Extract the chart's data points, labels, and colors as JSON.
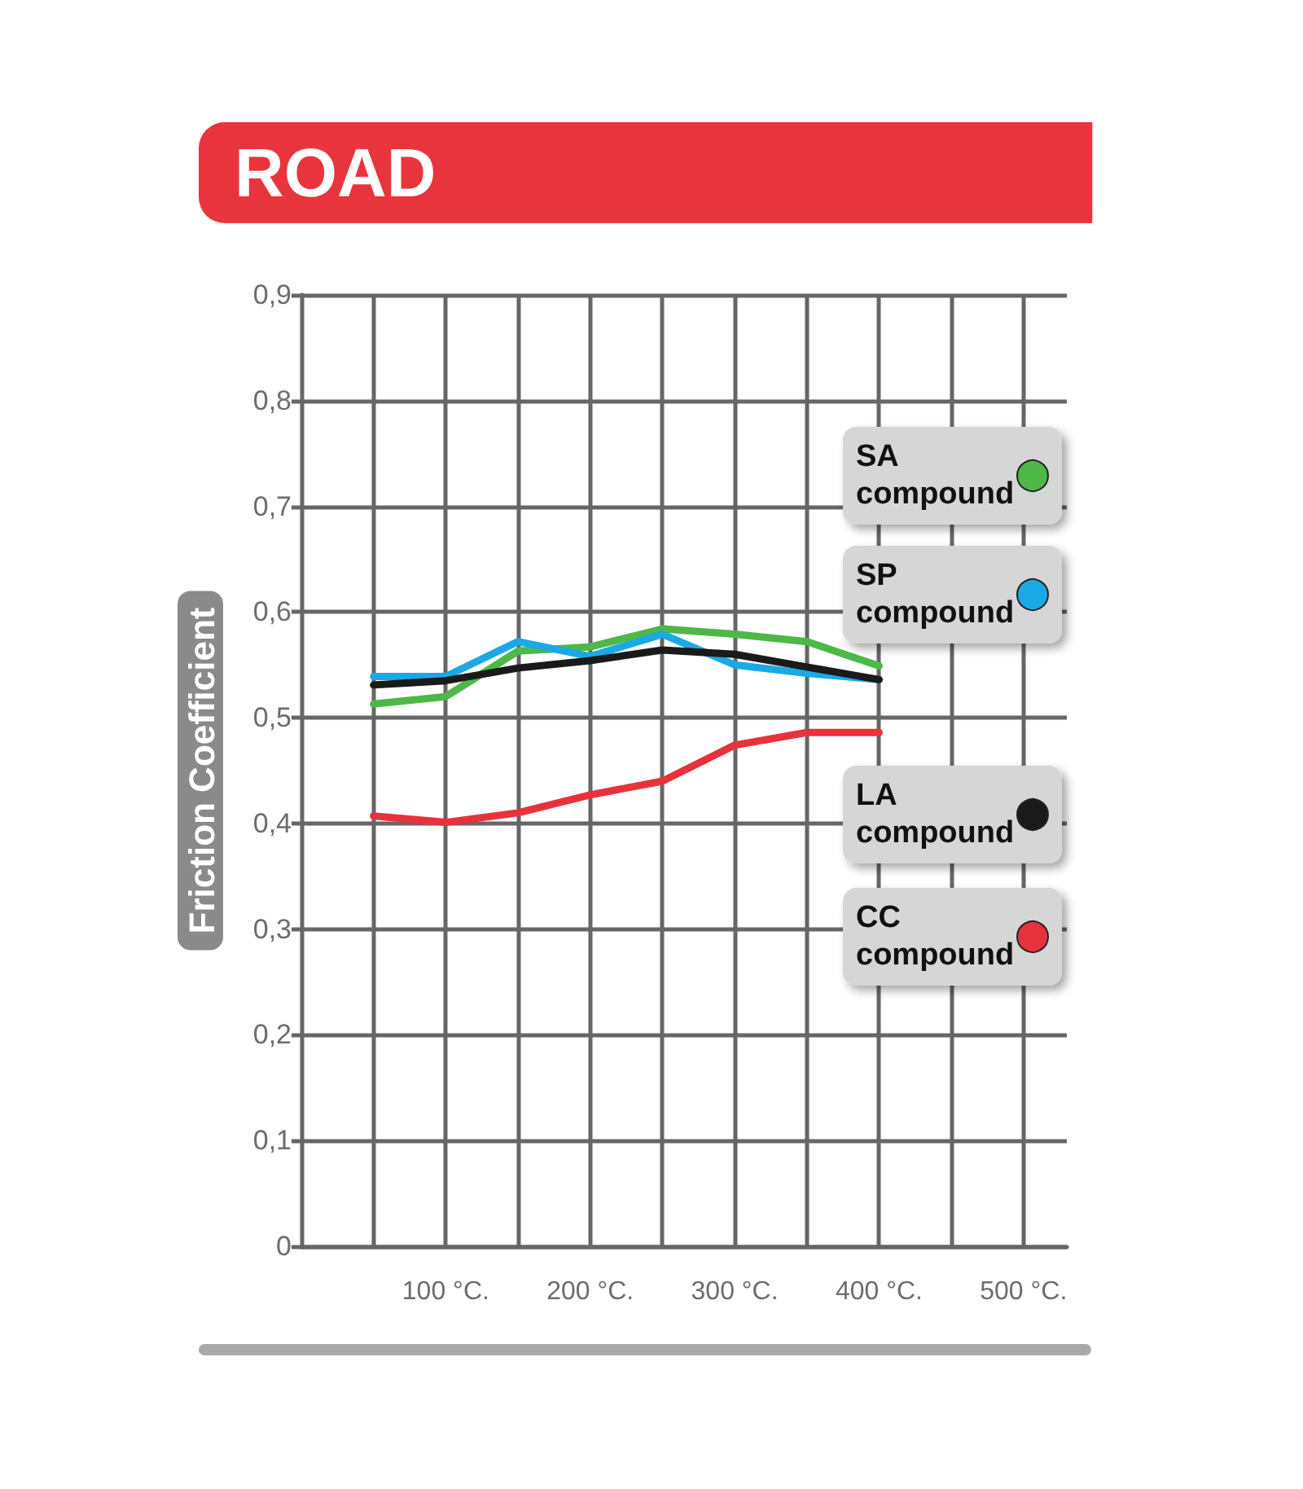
{
  "chart_data": {
    "type": "line",
    "title": "ROAD",
    "ylabel": "Friction Coefficient",
    "x": [
      50,
      100,
      150,
      200,
      250,
      300,
      350,
      400
    ],
    "series": [
      {
        "name": "SA compound",
        "color": "#4db848",
        "values": [
          0.513,
          0.52,
          0.563,
          0.567,
          0.584,
          0.579,
          0.572,
          0.549
        ]
      },
      {
        "name": "SP compound",
        "color": "#1ba9e6",
        "values": [
          0.539,
          0.539,
          0.572,
          0.558,
          0.579,
          0.55,
          0.542,
          0.536
        ]
      },
      {
        "name": "LA compound",
        "color": "#1a1a1a",
        "values": [
          0.531,
          0.535,
          0.547,
          0.554,
          0.564,
          0.56,
          0.548,
          0.536
        ]
      },
      {
        "name": "CC compound",
        "color": "#e8323b",
        "values": [
          0.407,
          0.401,
          0.41,
          0.427,
          0.44,
          0.474,
          0.486,
          0.486
        ]
      }
    ],
    "xlim": [
      0,
      530
    ],
    "xticks": [
      {
        "value": 50,
        "label": null
      },
      {
        "value": 100,
        "label": "100 °C."
      },
      {
        "value": 150,
        "label": null
      },
      {
        "value": 200,
        "label": "200 °C."
      },
      {
        "value": 250,
        "label": null
      },
      {
        "value": 300,
        "label": "300 °C."
      },
      {
        "value": 350,
        "label": null
      },
      {
        "value": 400,
        "label": "400 °C."
      },
      {
        "value": 450,
        "label": null
      },
      {
        "value": 500,
        "label": "500 °C."
      }
    ],
    "ylim": [
      0,
      0.9
    ],
    "yticks": [
      0,
      {
        "value": 0.1,
        "label": "0,1"
      },
      {
        "value": 0.2,
        "label": "0,2"
      },
      {
        "value": 0.3,
        "label": "0,3"
      },
      {
        "value": 0.4,
        "label": "0,4"
      },
      {
        "value": 0.5,
        "label": "0,5"
      },
      {
        "value": 0.6,
        "label": "0,6"
      },
      {
        "value": 0.7,
        "label": "0,7"
      },
      {
        "value": 0.8,
        "label": "0,8"
      },
      {
        "value": 0.9,
        "label": "0,9"
      }
    ],
    "grid": true,
    "legend": "right",
    "marker": "none",
    "line_style": "solid"
  }
}
